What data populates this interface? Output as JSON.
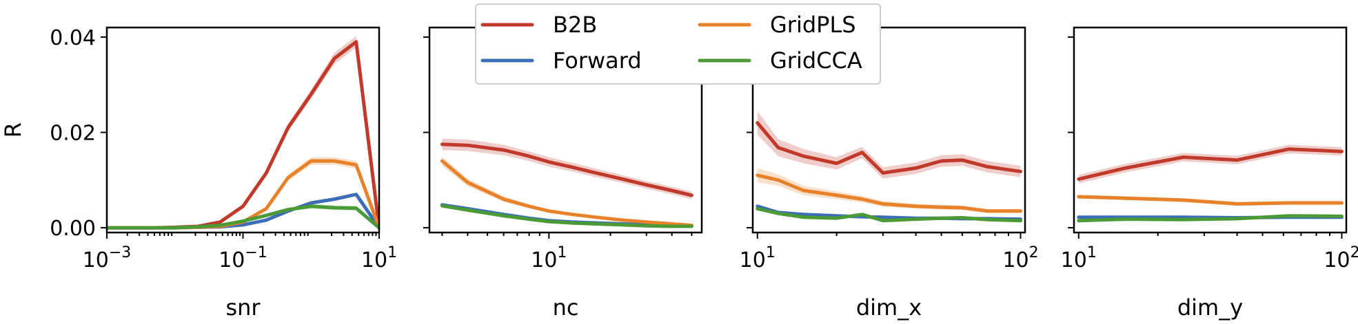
{
  "chart_data": [
    {
      "type": "line",
      "xscale": "log",
      "xlim": [
        0.001,
        10
      ],
      "ylim": [
        -0.001,
        0.042
      ],
      "xticks": [
        {
          "value": 0.001,
          "base": "10",
          "exp": "−3"
        },
        {
          "value": 0.1,
          "base": "10",
          "exp": "−1"
        },
        {
          "value": 10,
          "base": "10",
          "exp": "1"
        }
      ],
      "yticks": [
        {
          "value": 0.0,
          "label": "0.00"
        },
        {
          "value": 0.02,
          "label": "0.02"
        },
        {
          "value": 0.04,
          "label": "0.04"
        }
      ],
      "show_ytick_labels": true,
      "xlabel": "snr",
      "ylabel": "R",
      "series": [
        {
          "name": "B2B",
          "color": "#c0392b",
          "x": [
            0.001,
            0.0022,
            0.0046,
            0.01,
            0.022,
            0.046,
            0.1,
            0.22,
            0.46,
            1,
            2.2,
            4.6,
            10
          ],
          "y": [
            0.0,
            0.0,
            0.0,
            0.0001,
            0.0003,
            0.0012,
            0.0045,
            0.0115,
            0.021,
            0.028,
            0.0355,
            0.039,
            0.0
          ],
          "err": [
            0.0,
            0.0,
            0.0,
            0.0001,
            0.0002,
            0.0003,
            0.0004,
            0.0006,
            0.0008,
            0.001,
            0.0012,
            0.0012,
            0.0
          ]
        },
        {
          "name": "Forward",
          "color": "#3d6cb9",
          "x": [
            0.001,
            0.0022,
            0.0046,
            0.01,
            0.022,
            0.046,
            0.1,
            0.22,
            0.46,
            1,
            2.2,
            4.6,
            10
          ],
          "y": [
            0.0,
            0.0,
            0.0,
            0.0,
            0.0001,
            0.0002,
            0.0006,
            0.0016,
            0.0035,
            0.0052,
            0.006,
            0.007,
            0.0
          ],
          "err": [
            0.0,
            0.0,
            0.0,
            0.0,
            0.0001,
            0.0001,
            0.0001,
            0.0002,
            0.0002,
            0.0003,
            0.0003,
            0.0003,
            0.0
          ]
        },
        {
          "name": "GridPLS",
          "color": "#e8822a",
          "x": [
            0.001,
            0.0022,
            0.0046,
            0.01,
            0.022,
            0.046,
            0.1,
            0.22,
            0.46,
            1,
            2.2,
            4.6,
            10
          ],
          "y": [
            0.0,
            0.0,
            0.0,
            0.0,
            0.0001,
            0.0003,
            0.0012,
            0.004,
            0.0105,
            0.014,
            0.014,
            0.0132,
            0.0
          ],
          "err": [
            0.0,
            0.0,
            0.0,
            0.0,
            0.0001,
            0.0001,
            0.0002,
            0.0004,
            0.0006,
            0.0008,
            0.0008,
            0.0008,
            0.0
          ]
        },
        {
          "name": "GridCCA",
          "color": "#4a9a35",
          "x": [
            0.001,
            0.0022,
            0.0046,
            0.01,
            0.022,
            0.046,
            0.1,
            0.22,
            0.46,
            1,
            2.2,
            4.6,
            10
          ],
          "y": [
            0.0,
            0.0,
            0.0,
            0.0,
            0.0002,
            0.0005,
            0.0014,
            0.0026,
            0.0038,
            0.0045,
            0.0042,
            0.0041,
            0.0
          ],
          "err": [
            0.0,
            0.0,
            0.0,
            0.0,
            0.0001,
            0.0001,
            0.0002,
            0.0003,
            0.0004,
            0.0005,
            0.0005,
            0.0005,
            0.0
          ]
        }
      ]
    },
    {
      "type": "line",
      "xscale": "log",
      "xlim": [
        2.6,
        56
      ],
      "ylim": [
        -0.001,
        0.042
      ],
      "xticks": [
        {
          "value": 10,
          "base": "10",
          "exp": "1"
        }
      ],
      "yticks": [
        {
          "value": 0.0,
          "label": "0.00"
        },
        {
          "value": 0.02,
          "label": "0.02"
        },
        {
          "value": 0.04,
          "label": "0.04"
        }
      ],
      "show_ytick_labels": false,
      "xlabel": "nc",
      "ylabel": "",
      "series": [
        {
          "name": "B2B",
          "color": "#c0392b",
          "x": [
            3,
            4,
            6,
            8,
            10,
            13,
            17,
            23,
            30,
            40,
            50
          ],
          "y": [
            0.0175,
            0.0173,
            0.0163,
            0.015,
            0.0138,
            0.0127,
            0.0115,
            0.0102,
            0.009,
            0.0078,
            0.0068
          ],
          "err": [
            0.0012,
            0.0012,
            0.0011,
            0.001,
            0.001,
            0.0009,
            0.0009,
            0.0008,
            0.0008,
            0.0008,
            0.0008
          ]
        },
        {
          "name": "Forward",
          "color": "#3d6cb9",
          "x": [
            3,
            4,
            6,
            8,
            10,
            13,
            17,
            23,
            30,
            40,
            50
          ],
          "y": [
            0.0048,
            0.004,
            0.0028,
            0.002,
            0.0015,
            0.0012,
            0.001,
            0.0008,
            0.0006,
            0.0005,
            0.0004
          ],
          "err": [
            0.0004,
            0.0003,
            0.0003,
            0.0002,
            0.0002,
            0.0002,
            0.0002,
            0.0001,
            0.0001,
            0.0001,
            0.0001
          ]
        },
        {
          "name": "GridPLS",
          "color": "#e8822a",
          "x": [
            3,
            4,
            6,
            8,
            10,
            13,
            17,
            23,
            30,
            40,
            50
          ],
          "y": [
            0.014,
            0.0095,
            0.006,
            0.0045,
            0.0035,
            0.0028,
            0.0022,
            0.0016,
            0.0012,
            0.0008,
            0.0005
          ],
          "err": [
            0.001,
            0.0008,
            0.0006,
            0.0004,
            0.0003,
            0.0003,
            0.0002,
            0.0002,
            0.0002,
            0.0001,
            0.0001
          ]
        },
        {
          "name": "GridCCA",
          "color": "#4a9a35",
          "x": [
            3,
            4,
            6,
            8,
            10,
            13,
            17,
            23,
            30,
            40,
            50
          ],
          "y": [
            0.0046,
            0.0037,
            0.0025,
            0.0018,
            0.0013,
            0.001,
            0.0008,
            0.0006,
            0.0004,
            0.0003,
            0.0003
          ],
          "err": [
            0.0004,
            0.0003,
            0.0003,
            0.0002,
            0.0002,
            0.0002,
            0.0001,
            0.0001,
            0.0001,
            0.0001,
            0.0001
          ]
        }
      ]
    },
    {
      "type": "line",
      "xscale": "log",
      "xlim": [
        9.6,
        104
      ],
      "ylim": [
        -0.001,
        0.042
      ],
      "xticks": [
        {
          "value": 10,
          "base": "10",
          "exp": "1"
        },
        {
          "value": 100,
          "base": "10",
          "exp": "2"
        }
      ],
      "yticks": [
        {
          "value": 0.0,
          "label": "0.00"
        },
        {
          "value": 0.02,
          "label": "0.02"
        },
        {
          "value": 0.04,
          "label": "0.04"
        }
      ],
      "show_ytick_labels": false,
      "xlabel": "dim_x",
      "ylabel": "",
      "series": [
        {
          "name": "B2B",
          "color": "#c0392b",
          "x": [
            10,
            12,
            15,
            20,
            25,
            30,
            40,
            50,
            60,
            75,
            100
          ],
          "y": [
            0.022,
            0.0168,
            0.015,
            0.0135,
            0.0158,
            0.0115,
            0.0125,
            0.014,
            0.0142,
            0.0128,
            0.0118
          ],
          "err": [
            0.0025,
            0.0018,
            0.0015,
            0.0013,
            0.0012,
            0.0012,
            0.0012,
            0.0012,
            0.0012,
            0.0012,
            0.0012
          ]
        },
        {
          "name": "Forward",
          "color": "#3d6cb9",
          "x": [
            10,
            12,
            15,
            20,
            25,
            30,
            40,
            50,
            60,
            75,
            100
          ],
          "y": [
            0.0045,
            0.0032,
            0.0028,
            0.0025,
            0.0023,
            0.0022,
            0.002,
            0.002,
            0.0019,
            0.0019,
            0.0018
          ],
          "err": [
            0.0004,
            0.0003,
            0.0003,
            0.0003,
            0.0003,
            0.0003,
            0.0003,
            0.0003,
            0.0003,
            0.0003,
            0.0003
          ]
        },
        {
          "name": "GridPLS",
          "color": "#e8822a",
          "x": [
            10,
            12,
            15,
            20,
            25,
            30,
            40,
            50,
            60,
            75,
            100
          ],
          "y": [
            0.011,
            0.01,
            0.0078,
            0.0068,
            0.006,
            0.005,
            0.0045,
            0.0043,
            0.0042,
            0.0035,
            0.0035
          ],
          "err": [
            0.0015,
            0.0012,
            0.001,
            0.0008,
            0.0007,
            0.0006,
            0.0005,
            0.0005,
            0.0005,
            0.0004,
            0.0004
          ]
        },
        {
          "name": "GridCCA",
          "color": "#4a9a35",
          "x": [
            10,
            12,
            15,
            20,
            25,
            30,
            40,
            50,
            60,
            75,
            100
          ],
          "y": [
            0.004,
            0.003,
            0.0022,
            0.002,
            0.0028,
            0.0015,
            0.0018,
            0.002,
            0.0021,
            0.0017,
            0.0015
          ],
          "err": [
            0.0004,
            0.0003,
            0.0003,
            0.0003,
            0.0003,
            0.0003,
            0.0003,
            0.0003,
            0.0003,
            0.0003,
            0.0003
          ]
        }
      ]
    },
    {
      "type": "line",
      "xscale": "log",
      "xlim": [
        9.6,
        104
      ],
      "ylim": [
        -0.001,
        0.042
      ],
      "xticks": [
        {
          "value": 10,
          "base": "10",
          "exp": "1"
        },
        {
          "value": 100,
          "base": "10",
          "exp": "2"
        }
      ],
      "yticks": [
        {
          "value": 0.0,
          "label": "0.00"
        },
        {
          "value": 0.02,
          "label": "0.02"
        },
        {
          "value": 0.04,
          "label": "0.04"
        }
      ],
      "show_ytick_labels": false,
      "xlabel": "dim_y",
      "ylabel": "",
      "series": [
        {
          "name": "B2B",
          "color": "#c0392b",
          "x": [
            10,
            15,
            25,
            40,
            63,
            100
          ],
          "y": [
            0.0102,
            0.0125,
            0.0148,
            0.0142,
            0.0165,
            0.016
          ],
          "err": [
            0.0009,
            0.0009,
            0.0009,
            0.0009,
            0.0009,
            0.0009
          ]
        },
        {
          "name": "Forward",
          "color": "#3d6cb9",
          "x": [
            10,
            15,
            25,
            40,
            63,
            100
          ],
          "y": [
            0.0022,
            0.0022,
            0.0022,
            0.0021,
            0.0022,
            0.0022
          ],
          "err": [
            0.0002,
            0.0002,
            0.0002,
            0.0002,
            0.0002,
            0.0002
          ]
        },
        {
          "name": "GridPLS",
          "color": "#e8822a",
          "x": [
            10,
            15,
            25,
            40,
            63,
            100
          ],
          "y": [
            0.0065,
            0.0062,
            0.0058,
            0.005,
            0.0052,
            0.0052
          ],
          "err": [
            0.0004,
            0.0004,
            0.0004,
            0.0004,
            0.0004,
            0.0004
          ]
        },
        {
          "name": "GridCCA",
          "color": "#4a9a35",
          "x": [
            10,
            15,
            25,
            40,
            63,
            100
          ],
          "y": [
            0.0015,
            0.0018,
            0.0017,
            0.0019,
            0.0025,
            0.0024
          ],
          "err": [
            0.0002,
            0.0002,
            0.0002,
            0.0002,
            0.0002,
            0.0002
          ]
        }
      ]
    }
  ],
  "legend": {
    "location": "upper-center",
    "columns": 2,
    "entries": [
      {
        "name": "B2B",
        "color": "#c0392b"
      },
      {
        "name": "GridPLS",
        "color": "#e8822a"
      },
      {
        "name": "Forward",
        "color": "#3d6cb9"
      },
      {
        "name": "GridCCA",
        "color": "#4a9a35"
      }
    ]
  }
}
